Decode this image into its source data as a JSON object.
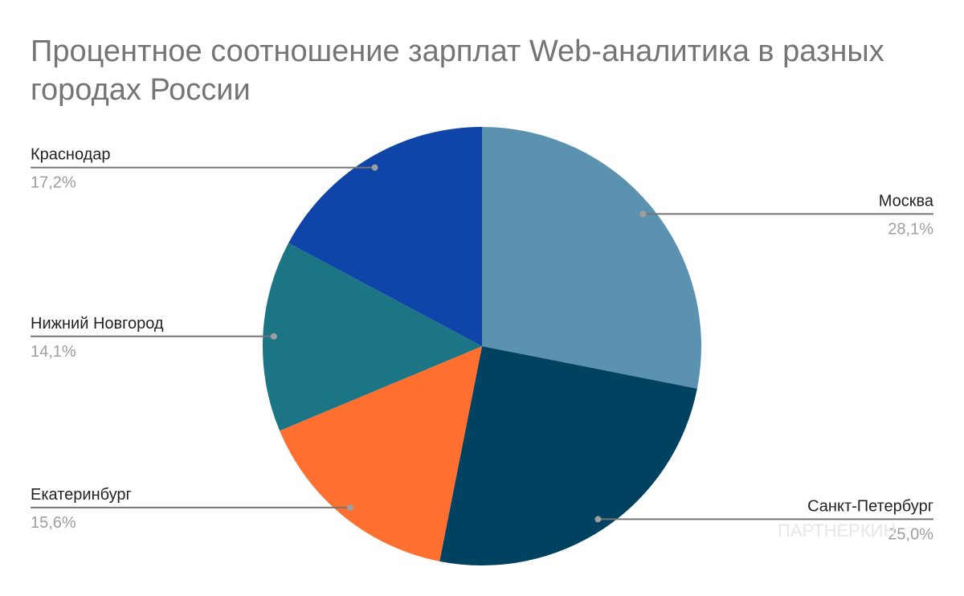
{
  "chart_data": {
    "type": "pie",
    "title": "Процентное соотношение зарплат Web-аналитика в разных городах России",
    "categories": [
      "Москва",
      "Санкт-Петербург",
      "Екатеринбург",
      "Нижний Новгород",
      "Краснодар"
    ],
    "values": [
      28.1,
      25.0,
      15.6,
      14.1,
      17.2
    ],
    "value_labels": [
      "28,1%",
      "25,0%",
      "15,6%",
      "14,1%",
      "17,2%"
    ],
    "colors": [
      "#5b92b0",
      "#004260",
      "#fe6f30",
      "#1c7585",
      "#0f45a8"
    ],
    "watermark": "ПАРТНЕРКИН"
  }
}
